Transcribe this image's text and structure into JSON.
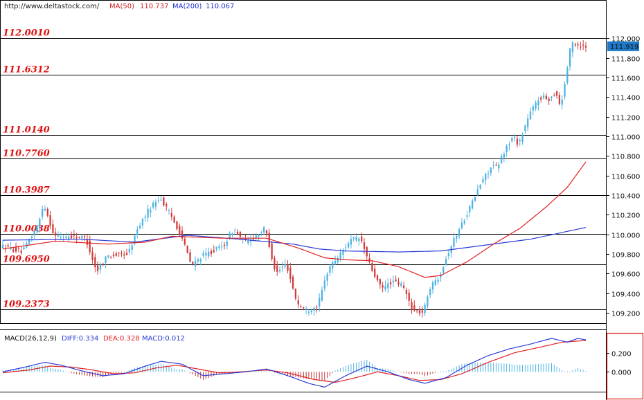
{
  "header": {
    "source": "http://www.deltastock.com/",
    "ma50_label": "MA(50)",
    "ma50_value": "110.737",
    "ma200_label": "MA(200)",
    "ma200_value": "110.067"
  },
  "colors": {
    "bull": "#4db3e3",
    "bear": "#d23c3c",
    "ma50": "#e02020",
    "ma200": "#2a3cd8",
    "level_text": "#e01010",
    "diff": "#2a3cd8",
    "dea": "#e02020",
    "macd_pos": "#4db3e3",
    "macd_neg": "#c03030",
    "price_tag_bg": "#1e78c8"
  },
  "chart_data": [
    {
      "type": "candlestick",
      "current_price": "111.919",
      "ylim": [
        109.1,
        112.25
      ],
      "yticks": [
        "112.000",
        "111.800",
        "111.600",
        "111.400",
        "111.200",
        "111.000",
        "110.800",
        "110.600",
        "110.400",
        "110.200",
        "110.000",
        "109.800",
        "109.600",
        "109.400",
        "109.200"
      ],
      "levels": [
        {
          "label": "112.0010",
          "value": 112.001
        },
        {
          "label": "111.6312",
          "value": 111.6312
        },
        {
          "label": "111.0140",
          "value": 111.014
        },
        {
          "label": "110.7760",
          "value": 110.776
        },
        {
          "label": "110.3987",
          "value": 110.3987
        },
        {
          "label": "110.0038",
          "value": 110.0038
        },
        {
          "label": "109.6950",
          "value": 109.695
        },
        {
          "label": "109.2373",
          "value": 109.2373
        }
      ],
      "anchors": [
        [
          0,
          109.88
        ],
        [
          8,
          109.82
        ],
        [
          14,
          110.1
        ],
        [
          16,
          110.32
        ],
        [
          20,
          109.98
        ],
        [
          28,
          109.98
        ],
        [
          32,
          109.96
        ],
        [
          36,
          109.62
        ],
        [
          40,
          109.78
        ],
        [
          48,
          109.8
        ],
        [
          52,
          110.08
        ],
        [
          56,
          110.26
        ],
        [
          60,
          110.38
        ],
        [
          64,
          110.2
        ],
        [
          68,
          110.0
        ],
        [
          72,
          109.68
        ],
        [
          76,
          109.78
        ],
        [
          84,
          109.88
        ],
        [
          88,
          110.05
        ],
        [
          92,
          109.92
        ],
        [
          96,
          109.98
        ],
        [
          100,
          110.06
        ],
        [
          104,
          109.6
        ],
        [
          108,
          109.7
        ],
        [
          112,
          109.3
        ],
        [
          116,
          109.22
        ],
        [
          120,
          109.28
        ],
        [
          124,
          109.66
        ],
        [
          128,
          109.78
        ],
        [
          132,
          109.94
        ],
        [
          136,
          109.96
        ],
        [
          140,
          109.66
        ],
        [
          144,
          109.44
        ],
        [
          148,
          109.52
        ],
        [
          152,
          109.48
        ],
        [
          156,
          109.22
        ],
        [
          160,
          109.2
        ],
        [
          162,
          109.44
        ],
        [
          166,
          109.58
        ],
        [
          170,
          109.86
        ],
        [
          174,
          110.08
        ],
        [
          178,
          110.3
        ],
        [
          182,
          110.54
        ],
        [
          186,
          110.7
        ],
        [
          188,
          110.68
        ],
        [
          190,
          110.82
        ],
        [
          194,
          111.0
        ],
        [
          196,
          110.92
        ],
        [
          200,
          111.22
        ],
        [
          204,
          111.4
        ],
        [
          208,
          111.38
        ],
        [
          210,
          111.46
        ],
        [
          212,
          111.3
        ],
        [
          214,
          111.62
        ],
        [
          216,
          111.96
        ],
        [
          220,
          111.92
        ]
      ],
      "ma50": [
        [
          0,
          109.85
        ],
        [
          20,
          109.93
        ],
        [
          40,
          109.9
        ],
        [
          54,
          109.92
        ],
        [
          64,
          109.98
        ],
        [
          84,
          109.96
        ],
        [
          100,
          109.96
        ],
        [
          112,
          109.86
        ],
        [
          122,
          109.76
        ],
        [
          130,
          109.74
        ],
        [
          140,
          109.73
        ],
        [
          150,
          109.67
        ],
        [
          160,
          109.56
        ],
        [
          166,
          109.58
        ],
        [
          176,
          109.72
        ],
        [
          186,
          109.9
        ],
        [
          196,
          110.06
        ],
        [
          206,
          110.28
        ],
        [
          214,
          110.48
        ],
        [
          221,
          110.74
        ]
      ],
      "ma200": [
        [
          0,
          109.94
        ],
        [
          30,
          109.95
        ],
        [
          50,
          109.92
        ],
        [
          70,
          109.99
        ],
        [
          90,
          109.95
        ],
        [
          110,
          109.9
        ],
        [
          120,
          109.85
        ],
        [
          130,
          109.83
        ],
        [
          150,
          109.82
        ],
        [
          166,
          109.83
        ],
        [
          180,
          109.88
        ],
        [
          200,
          109.95
        ],
        [
          221,
          110.07
        ]
      ]
    },
    {
      "type": "line",
      "title": "MACD(26,12,9)",
      "diff_label": "DIFF:0.334",
      "dea_label": "DEA:0.328",
      "macd_label": "MACD:0.012",
      "ylim": [
        -0.2,
        0.4
      ],
      "yticks": [
        "0.200",
        "0.000"
      ],
      "diff": [
        [
          0,
          0.0
        ],
        [
          10,
          0.06
        ],
        [
          16,
          0.1
        ],
        [
          22,
          0.07
        ],
        [
          30,
          0.01
        ],
        [
          38,
          -0.04
        ],
        [
          46,
          -0.02
        ],
        [
          54,
          0.06
        ],
        [
          60,
          0.11
        ],
        [
          68,
          0.08
        ],
        [
          76,
          -0.04
        ],
        [
          84,
          -0.02
        ],
        [
          92,
          0.0
        ],
        [
          100,
          0.03
        ],
        [
          108,
          -0.04
        ],
        [
          116,
          -0.12
        ],
        [
          122,
          -0.16
        ],
        [
          130,
          -0.04
        ],
        [
          138,
          0.06
        ],
        [
          146,
          0.0
        ],
        [
          154,
          -0.08
        ],
        [
          160,
          -0.12
        ],
        [
          168,
          -0.06
        ],
        [
          176,
          0.07
        ],
        [
          184,
          0.17
        ],
        [
          192,
          0.24
        ],
        [
          200,
          0.29
        ],
        [
          208,
          0.35
        ],
        [
          214,
          0.31
        ],
        [
          218,
          0.35
        ],
        [
          221,
          0.334
        ]
      ],
      "dea": [
        [
          0,
          -0.01
        ],
        [
          10,
          0.02
        ],
        [
          18,
          0.06
        ],
        [
          26,
          0.05
        ],
        [
          34,
          0.02
        ],
        [
          42,
          -0.02
        ],
        [
          50,
          -0.01
        ],
        [
          58,
          0.04
        ],
        [
          66,
          0.07
        ],
        [
          74,
          0.03
        ],
        [
          82,
          -0.01
        ],
        [
          90,
          0.0
        ],
        [
          100,
          0.02
        ],
        [
          108,
          -0.01
        ],
        [
          118,
          -0.08
        ],
        [
          126,
          -0.11
        ],
        [
          134,
          -0.06
        ],
        [
          142,
          0.0
        ],
        [
          150,
          -0.04
        ],
        [
          158,
          -0.09
        ],
        [
          166,
          -0.08
        ],
        [
          174,
          -0.02
        ],
        [
          184,
          0.1
        ],
        [
          194,
          0.2
        ],
        [
          204,
          0.26
        ],
        [
          212,
          0.31
        ],
        [
          221,
          0.328
        ]
      ]
    }
  ]
}
